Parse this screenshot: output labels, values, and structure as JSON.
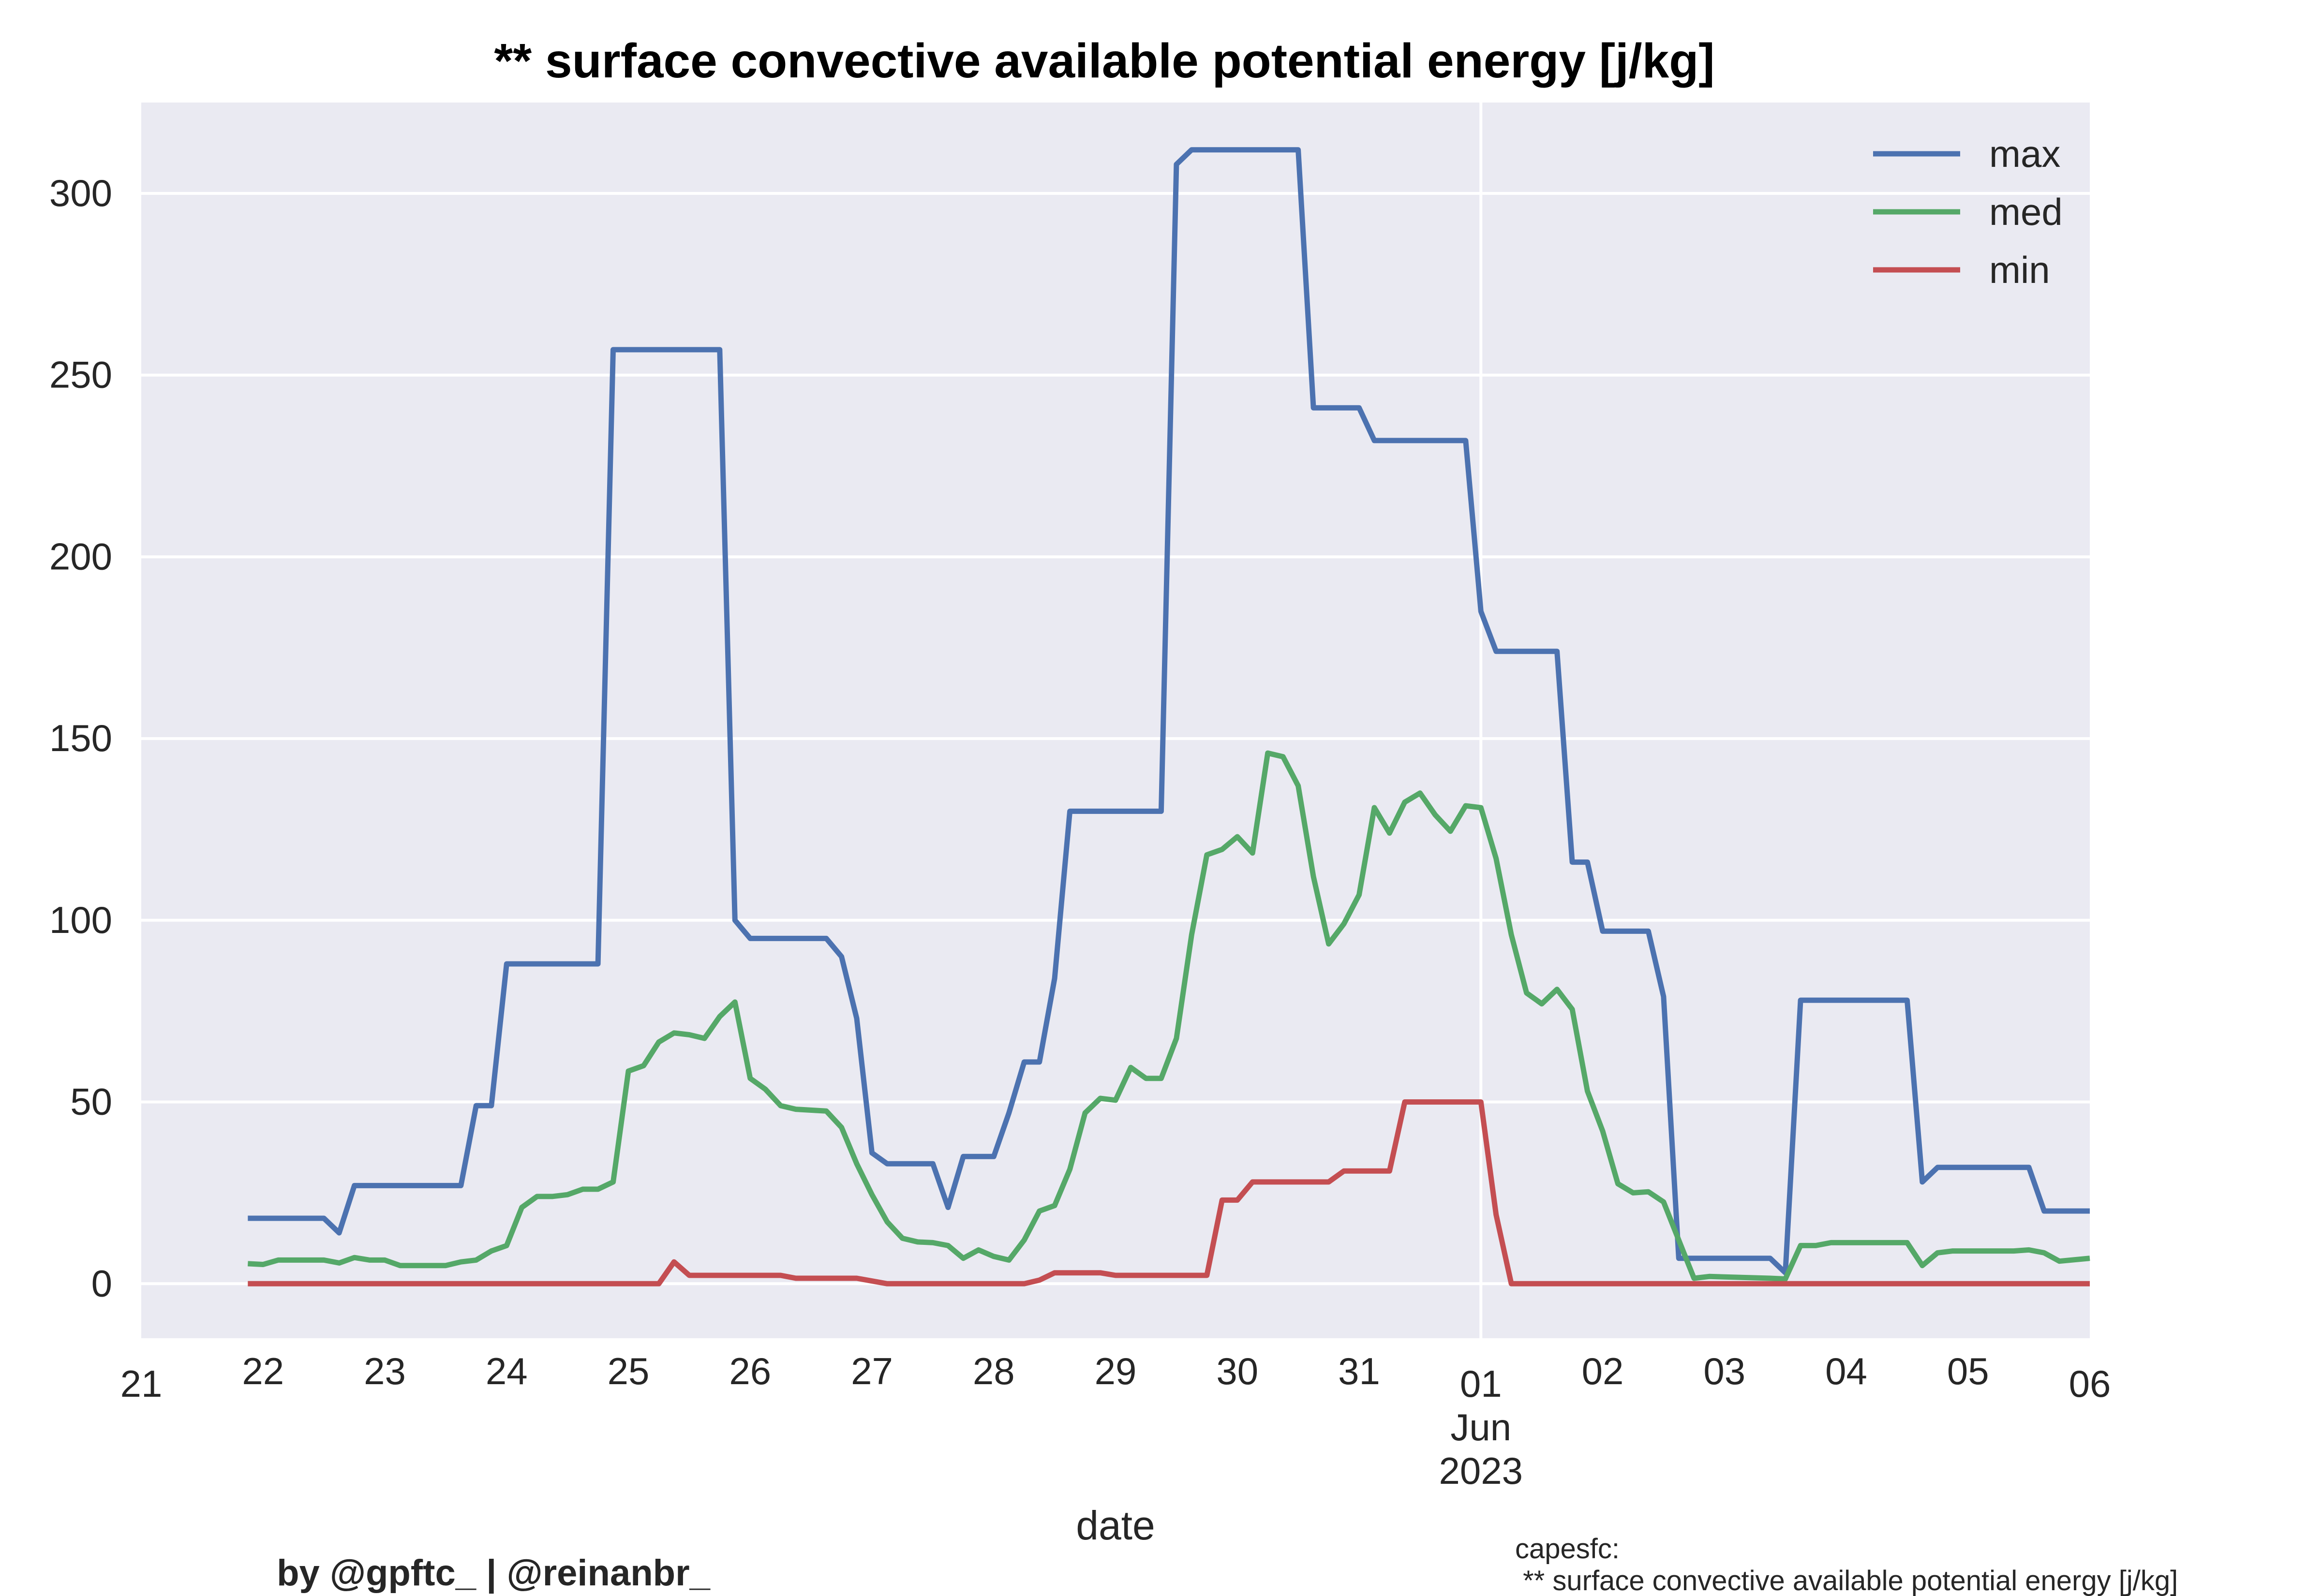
{
  "chart_data": {
    "type": "line",
    "title": "** surface convective available potential energy [j/kg]",
    "xlabel": "date",
    "ylabel": "",
    "x_range": [
      "2023-05-21 00:00",
      "2023-06-06 00:00"
    ],
    "ylim": [
      -15,
      325
    ],
    "y_ticks": [
      0,
      50,
      100,
      150,
      200,
      250,
      300
    ],
    "x_ticks": [
      {
        "date": "2023-05-21",
        "label": "21"
      },
      {
        "date": "2023-05-22",
        "label": "22"
      },
      {
        "date": "2023-05-23",
        "label": "23"
      },
      {
        "date": "2023-05-24",
        "label": "24"
      },
      {
        "date": "2023-05-25",
        "label": "25"
      },
      {
        "date": "2023-05-26",
        "label": "26"
      },
      {
        "date": "2023-05-27",
        "label": "27"
      },
      {
        "date": "2023-05-28",
        "label": "28"
      },
      {
        "date": "2023-05-29",
        "label": "29"
      },
      {
        "date": "2023-05-30",
        "label": "30"
      },
      {
        "date": "2023-05-31",
        "label": "31"
      },
      {
        "date": "2023-06-01",
        "label": "01",
        "sublabel": "Jun",
        "sublabel2": "2023"
      },
      {
        "date": "2023-06-02",
        "label": "02"
      },
      {
        "date": "2023-06-03",
        "label": "03"
      },
      {
        "date": "2023-06-04",
        "label": "04"
      },
      {
        "date": "2023-06-05",
        "label": "05"
      },
      {
        "date": "2023-06-06",
        "label": "06"
      }
    ],
    "grid": true,
    "legend_position": "top-right",
    "series": [
      {
        "name": "max",
        "color": "#4c72b0",
        "points": [
          [
            "2023-05-21 21:00",
            18
          ],
          [
            "2023-05-22 12:00",
            18
          ],
          [
            "2023-05-22 15:00",
            14
          ],
          [
            "2023-05-22 18:00",
            27
          ],
          [
            "2023-05-23 15:00",
            27
          ],
          [
            "2023-05-23 18:00",
            49
          ],
          [
            "2023-05-23 21:00",
            49
          ],
          [
            "2023-05-24 00:00",
            88
          ],
          [
            "2023-05-24 18:00",
            88
          ],
          [
            "2023-05-24 21:00",
            257
          ],
          [
            "2023-05-25 18:00",
            257
          ],
          [
            "2023-05-25 21:00",
            100
          ],
          [
            "2023-05-26 00:00",
            95
          ],
          [
            "2023-05-26 15:00",
            95
          ],
          [
            "2023-05-26 18:00",
            90
          ],
          [
            "2023-05-26 21:00",
            73
          ],
          [
            "2023-05-27 00:00",
            36
          ],
          [
            "2023-05-27 03:00",
            33
          ],
          [
            "2023-05-27 12:00",
            33
          ],
          [
            "2023-05-27 15:00",
            21
          ],
          [
            "2023-05-27 18:00",
            35
          ],
          [
            "2023-05-28 00:00",
            35
          ],
          [
            "2023-05-28 03:00",
            47
          ],
          [
            "2023-05-28 06:00",
            61
          ],
          [
            "2023-05-28 09:00",
            61
          ],
          [
            "2023-05-28 12:00",
            84
          ],
          [
            "2023-05-28 15:00",
            130
          ],
          [
            "2023-05-29 09:00",
            130
          ],
          [
            "2023-05-29 12:00",
            308
          ],
          [
            "2023-05-29 15:00",
            312
          ],
          [
            "2023-05-30 12:00",
            312
          ],
          [
            "2023-05-30 15:00",
            241
          ],
          [
            "2023-05-31 00:00",
            241
          ],
          [
            "2023-05-31 03:00",
            232
          ],
          [
            "2023-05-31 21:00",
            232
          ],
          [
            "2023-06-01 00:00",
            185
          ],
          [
            "2023-06-01 03:00",
            174
          ],
          [
            "2023-06-01 15:00",
            174
          ],
          [
            "2023-06-01 18:00",
            116
          ],
          [
            "2023-06-01 21:00",
            116
          ],
          [
            "2023-06-02 00:00",
            97
          ],
          [
            "2023-06-02 09:00",
            97
          ],
          [
            "2023-06-02 12:00",
            79
          ],
          [
            "2023-06-02 15:00",
            7
          ],
          [
            "2023-06-03 09:00",
            7
          ],
          [
            "2023-06-03 12:00",
            3
          ],
          [
            "2023-06-03 15:00",
            78
          ],
          [
            "2023-06-04 12:00",
            78
          ],
          [
            "2023-06-04 15:00",
            28
          ],
          [
            "2023-06-04 18:00",
            32
          ],
          [
            "2023-06-05 12:00",
            32
          ],
          [
            "2023-06-05 15:00",
            20
          ],
          [
            "2023-06-06 00:00",
            20
          ]
        ]
      },
      {
        "name": "med",
        "color": "#55a868",
        "points": [
          [
            "2023-05-21 21:00",
            5.5
          ],
          [
            "2023-05-22 00:00",
            5.3
          ],
          [
            "2023-05-22 03:00",
            6.5
          ],
          [
            "2023-05-22 12:00",
            6.5
          ],
          [
            "2023-05-22 15:00",
            5.7
          ],
          [
            "2023-05-22 18:00",
            7.2
          ],
          [
            "2023-05-22 21:00",
            6.5
          ],
          [
            "2023-05-23 00:00",
            6.5
          ],
          [
            "2023-05-23 03:00",
            5
          ],
          [
            "2023-05-23 12:00",
            5
          ],
          [
            "2023-05-23 15:00",
            6
          ],
          [
            "2023-05-23 18:00",
            6.5
          ],
          [
            "2023-05-23 21:00",
            9
          ],
          [
            "2023-05-24 00:00",
            10.5
          ],
          [
            "2023-05-24 03:00",
            21
          ],
          [
            "2023-05-24 06:00",
            24
          ],
          [
            "2023-05-24 09:00",
            24
          ],
          [
            "2023-05-24 12:00",
            24.5
          ],
          [
            "2023-05-24 15:00",
            26
          ],
          [
            "2023-05-24 18:00",
            26
          ],
          [
            "2023-05-24 21:00",
            28
          ],
          [
            "2023-05-25 00:00",
            58.5
          ],
          [
            "2023-05-25 03:00",
            60
          ],
          [
            "2023-05-25 06:00",
            66.5
          ],
          [
            "2023-05-25 09:00",
            69
          ],
          [
            "2023-05-25 12:00",
            68.5
          ],
          [
            "2023-05-25 15:00",
            67.5
          ],
          [
            "2023-05-25 18:00",
            73.5
          ],
          [
            "2023-05-25 21:00",
            77.5
          ],
          [
            "2023-05-26 00:00",
            56.5
          ],
          [
            "2023-05-26 03:00",
            53.5
          ],
          [
            "2023-05-26 06:00",
            49
          ],
          [
            "2023-05-26 09:00",
            48
          ],
          [
            "2023-05-26 15:00",
            47.5
          ],
          [
            "2023-05-26 18:00",
            43
          ],
          [
            "2023-05-26 21:00",
            33
          ],
          [
            "2023-05-27 00:00",
            24.5
          ],
          [
            "2023-05-27 03:00",
            17
          ],
          [
            "2023-05-27 06:00",
            12.5
          ],
          [
            "2023-05-27 09:00",
            11.5
          ],
          [
            "2023-05-27 12:00",
            11.3
          ],
          [
            "2023-05-27 15:00",
            10.5
          ],
          [
            "2023-05-27 18:00",
            7
          ],
          [
            "2023-05-27 21:00",
            9.3
          ],
          [
            "2023-05-28 00:00",
            7.5
          ],
          [
            "2023-05-28 03:00",
            6.5
          ],
          [
            "2023-05-28 06:00",
            12
          ],
          [
            "2023-05-28 09:00",
            20
          ],
          [
            "2023-05-28 12:00",
            21.5
          ],
          [
            "2023-05-28 15:00",
            31.5
          ],
          [
            "2023-05-28 18:00",
            47
          ],
          [
            "2023-05-28 21:00",
            51
          ],
          [
            "2023-05-29 00:00",
            50.5
          ],
          [
            "2023-05-29 03:00",
            59.5
          ],
          [
            "2023-05-29 06:00",
            56.5
          ],
          [
            "2023-05-29 09:00",
            56.5
          ],
          [
            "2023-05-29 12:00",
            67.5
          ],
          [
            "2023-05-29 15:00",
            96
          ],
          [
            "2023-05-29 18:00",
            118
          ],
          [
            "2023-05-29 21:00",
            119.5
          ],
          [
            "2023-05-30 00:00",
            123
          ],
          [
            "2023-05-30 03:00",
            118.5
          ],
          [
            "2023-05-30 06:00",
            146
          ],
          [
            "2023-05-30 09:00",
            145
          ],
          [
            "2023-05-30 12:00",
            137
          ],
          [
            "2023-05-30 15:00",
            112
          ],
          [
            "2023-05-30 18:00",
            93.5
          ],
          [
            "2023-05-30 21:00",
            99
          ],
          [
            "2023-05-31 00:00",
            107
          ],
          [
            "2023-05-31 03:00",
            131
          ],
          [
            "2023-05-31 06:00",
            124
          ],
          [
            "2023-05-31 09:00",
            132.5
          ],
          [
            "2023-05-31 12:00",
            135
          ],
          [
            "2023-05-31 15:00",
            129
          ],
          [
            "2023-05-31 18:00",
            124.5
          ],
          [
            "2023-05-31 21:00",
            131.5
          ],
          [
            "2023-06-01 00:00",
            131
          ],
          [
            "2023-06-01 03:00",
            117
          ],
          [
            "2023-06-01 06:00",
            96
          ],
          [
            "2023-06-01 09:00",
            80
          ],
          [
            "2023-06-01 12:00",
            77
          ],
          [
            "2023-06-01 15:00",
            81
          ],
          [
            "2023-06-01 18:00",
            75.5
          ],
          [
            "2023-06-01 21:00",
            53
          ],
          [
            "2023-06-02 00:00",
            42
          ],
          [
            "2023-06-02 03:00",
            27.5
          ],
          [
            "2023-06-02 06:00",
            25
          ],
          [
            "2023-06-02 09:00",
            25.3
          ],
          [
            "2023-06-02 12:00",
            22.5
          ],
          [
            "2023-06-02 15:00",
            12
          ],
          [
            "2023-06-02 18:00",
            1.5
          ],
          [
            "2023-06-02 21:00",
            2
          ],
          [
            "2023-06-03 09:00",
            1.5
          ],
          [
            "2023-06-03 12:00",
            1.3
          ],
          [
            "2023-06-03 15:00",
            10.5
          ],
          [
            "2023-06-03 18:00",
            10.5
          ],
          [
            "2023-06-03 21:00",
            11.3
          ],
          [
            "2023-06-04 12:00",
            11.3
          ],
          [
            "2023-06-04 15:00",
            5
          ],
          [
            "2023-06-04 18:00",
            8.5
          ],
          [
            "2023-06-04 21:00",
            9
          ],
          [
            "2023-06-05 09:00",
            9
          ],
          [
            "2023-06-05 12:00",
            9.3
          ],
          [
            "2023-06-05 15:00",
            8.5
          ],
          [
            "2023-06-05 18:00",
            6.2
          ],
          [
            "2023-06-06 00:00",
            7
          ]
        ]
      },
      {
        "name": "min",
        "color": "#c44e52",
        "points": [
          [
            "2023-05-21 21:00",
            0
          ],
          [
            "2023-05-25 06:00",
            0
          ],
          [
            "2023-05-25 09:00",
            6
          ],
          [
            "2023-05-25 12:00",
            2.3
          ],
          [
            "2023-05-26 06:00",
            2.3
          ],
          [
            "2023-05-26 09:00",
            1.5
          ],
          [
            "2023-05-26 21:00",
            1.5
          ],
          [
            "2023-05-27 03:00",
            0
          ],
          [
            "2023-05-28 06:00",
            0
          ],
          [
            "2023-05-28 09:00",
            1
          ],
          [
            "2023-05-28 12:00",
            3
          ],
          [
            "2023-05-28 21:00",
            3
          ],
          [
            "2023-05-29 00:00",
            2.3
          ],
          [
            "2023-05-29 18:00",
            2.3
          ],
          [
            "2023-05-29 21:00",
            23
          ],
          [
            "2023-05-30 00:00",
            23
          ],
          [
            "2023-05-30 03:00",
            28
          ],
          [
            "2023-05-30 18:00",
            28
          ],
          [
            "2023-05-30 21:00",
            31
          ],
          [
            "2023-05-31 06:00",
            31
          ],
          [
            "2023-05-31 09:00",
            50
          ],
          [
            "2023-06-01 00:00",
            50
          ],
          [
            "2023-06-01 03:00",
            19
          ],
          [
            "2023-06-01 06:00",
            0
          ],
          [
            "2023-06-06 00:00",
            0
          ]
        ]
      }
    ]
  },
  "footer": {
    "credit": "by @gpftc_ | @reinanbr_",
    "note_line1": "capesfc:",
    "note_line2": " ** surface convective available potential energy [j/kg]"
  }
}
